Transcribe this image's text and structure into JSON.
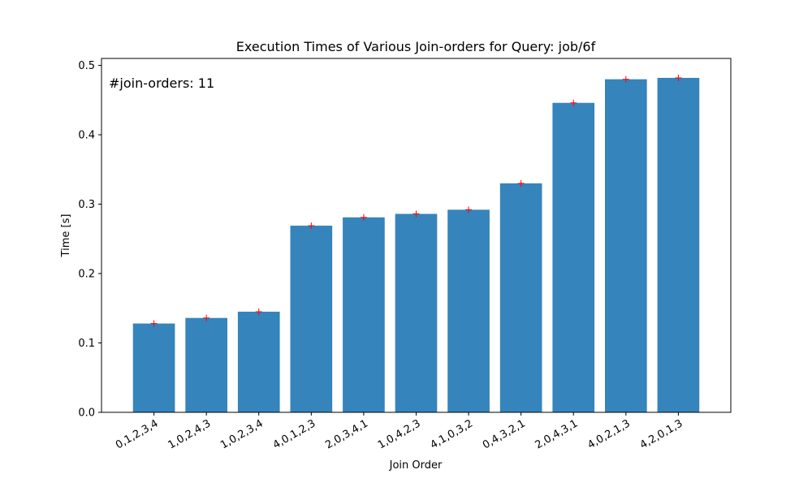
{
  "chart_data": {
    "type": "bar",
    "title": "Execution Times of Various Join-orders for Query: job/6f",
    "xlabel": "Join Order",
    "ylabel": "Time [s]",
    "annotation": "#join-orders: 11",
    "categories": [
      "0,1,2,3,4",
      "1,0,2,4,3",
      "1,0,2,3,4",
      "4,0,1,2,3",
      "2,0,3,4,1",
      "1,0,4,2,3",
      "4,1,0,3,2",
      "0,4,3,2,1",
      "2,0,4,3,1",
      "4,0,2,1,3",
      "4,2,0,1,3"
    ],
    "values": [
      0.128,
      0.136,
      0.145,
      0.269,
      0.281,
      0.286,
      0.292,
      0.33,
      0.446,
      0.48,
      0.482
    ],
    "ylim": [
      0,
      0.51
    ],
    "yticks": [
      0.0,
      0.1,
      0.2,
      0.3,
      0.4,
      0.5
    ],
    "ytick_labels": [
      "0.0",
      "0.1",
      "0.2",
      "0.3",
      "0.4",
      "0.5"
    ],
    "grid": false,
    "colors": {
      "bar": "#3584bc",
      "marker": "#ff0000",
      "axis": "#000000"
    }
  }
}
